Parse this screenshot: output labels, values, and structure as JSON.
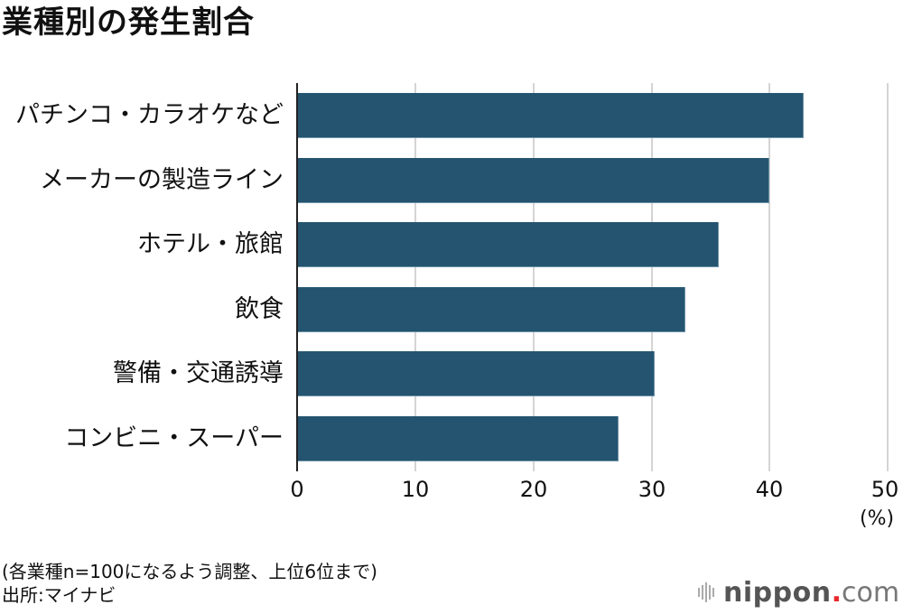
{
  "title": "業種別の発生割合",
  "chart_data": {
    "type": "bar",
    "orientation": "horizontal",
    "title": "業種別の発生割合",
    "categories": [
      "パチンコ・カラオケなど",
      "メーカーの製造ライン",
      "ホテル・旅館",
      "飲食",
      "警備・交通誘導",
      "コンビニ・スーパー"
    ],
    "values": [
      42.9,
      40.0,
      35.7,
      32.9,
      30.3,
      27.2
    ],
    "xlabel": "(%)",
    "ylabel": "",
    "xlim": [
      0,
      50
    ],
    "xticks": [
      "0",
      "10",
      "20",
      "30",
      "40",
      "50"
    ],
    "grid": true,
    "bar_color": "#245470"
  },
  "axis": {
    "unit": "(%)"
  },
  "footnote": {
    "line1": "(各業種n=100になるよう調整、上位6位まで)",
    "line2": "出所:マイナビ"
  },
  "logo": {
    "word": "nippon",
    "dot": ".",
    "tld": "com",
    "dot_color": "#e8282b"
  }
}
